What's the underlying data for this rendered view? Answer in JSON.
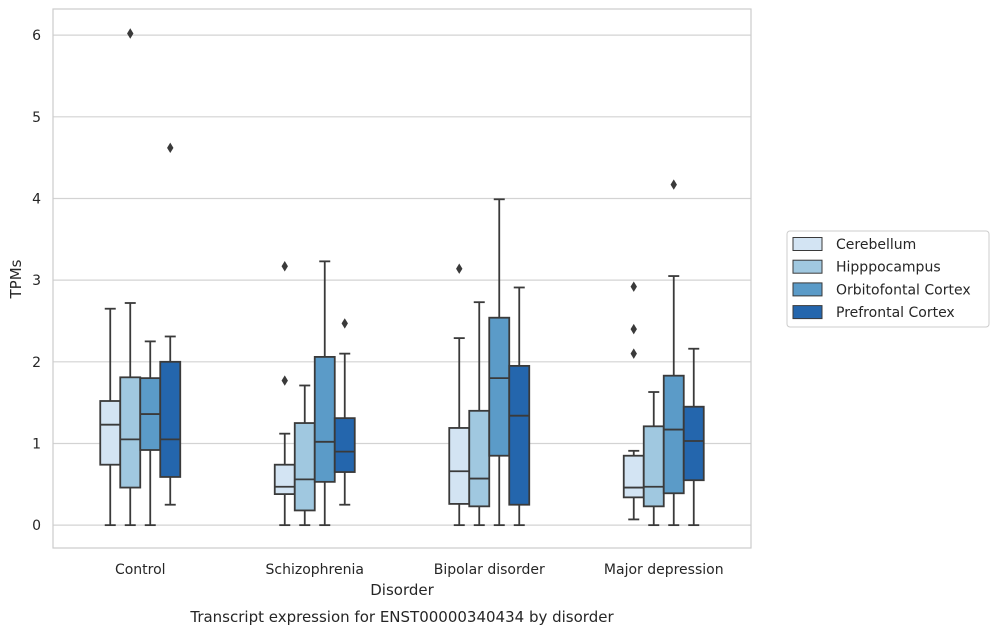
{
  "caption": "Transcript expression for ENST00000340434 by disorder",
  "chart_data": {
    "type": "box",
    "xlabel": "Disorder",
    "ylabel": "TPMs",
    "ylim": [
      -0.28,
      6.32
    ],
    "yticks": [
      0,
      1,
      2,
      3,
      4,
      5,
      6
    ],
    "grid": "horizontal",
    "legend_position": "right",
    "categories": [
      "Control",
      "Schizophrenia",
      "Bipolar disorder",
      "Major depression"
    ],
    "series": [
      {
        "name": "Cerebellum",
        "color": "#d3e4f3",
        "boxes": [
          {
            "whisker_low": 0,
            "q1": 0.74,
            "median": 1.23,
            "q3": 1.52,
            "whisker_high": 2.65,
            "outliers": []
          },
          {
            "whisker_low": 0,
            "q1": 0.38,
            "median": 0.47,
            "q3": 0.74,
            "whisker_high": 1.12,
            "outliers": [
              1.77,
              3.17
            ]
          },
          {
            "whisker_low": 0,
            "q1": 0.26,
            "median": 0.66,
            "q3": 1.19,
            "whisker_high": 2.29,
            "outliers": [
              3.14
            ]
          },
          {
            "whisker_low": 0.07,
            "q1": 0.34,
            "median": 0.46,
            "q3": 0.85,
            "whisker_high": 0.91,
            "outliers": [
              2.1,
              2.4,
              2.92
            ]
          }
        ]
      },
      {
        "name": "Hipppocampus",
        "color": "#a0c8e0",
        "boxes": [
          {
            "whisker_low": 0,
            "q1": 0.46,
            "median": 1.05,
            "q3": 1.81,
            "whisker_high": 2.72,
            "outliers": [
              6.02
            ]
          },
          {
            "whisker_low": 0,
            "q1": 0.18,
            "median": 0.56,
            "q3": 1.25,
            "whisker_high": 1.71,
            "outliers": []
          },
          {
            "whisker_low": 0,
            "q1": 0.23,
            "median": 0.57,
            "q3": 1.4,
            "whisker_high": 2.73,
            "outliers": []
          },
          {
            "whisker_low": 0,
            "q1": 0.23,
            "median": 0.47,
            "q3": 1.21,
            "whisker_high": 1.63,
            "outliers": []
          }
        ]
      },
      {
        "name": "Orbitofontal Cortex",
        "color": "#5b9bc8",
        "boxes": [
          {
            "whisker_low": 0,
            "q1": 0.92,
            "median": 1.36,
            "q3": 1.8,
            "whisker_high": 2.25,
            "outliers": []
          },
          {
            "whisker_low": 0,
            "q1": 0.53,
            "median": 1.02,
            "q3": 2.06,
            "whisker_high": 3.23,
            "outliers": []
          },
          {
            "whisker_low": 0,
            "q1": 0.85,
            "median": 1.8,
            "q3": 2.54,
            "whisker_high": 3.99,
            "outliers": []
          },
          {
            "whisker_low": 0,
            "q1": 0.39,
            "median": 1.17,
            "q3": 1.83,
            "whisker_high": 3.05,
            "outliers": [
              4.17
            ]
          }
        ]
      },
      {
        "name": "Prefrontal Cortex",
        "color": "#2466ad",
        "boxes": [
          {
            "whisker_low": 0.25,
            "q1": 0.59,
            "median": 1.05,
            "q3": 2.0,
            "whisker_high": 2.31,
            "outliers": [
              4.62
            ]
          },
          {
            "whisker_low": 0.25,
            "q1": 0.65,
            "median": 0.9,
            "q3": 1.31,
            "whisker_high": 2.1,
            "outliers": [
              2.47
            ]
          },
          {
            "whisker_low": 0,
            "q1": 0.25,
            "median": 1.34,
            "q3": 1.95,
            "whisker_high": 2.91,
            "outliers": []
          },
          {
            "whisker_low": 0,
            "q1": 0.55,
            "median": 1.03,
            "q3": 1.45,
            "whisker_high": 2.16,
            "outliers": []
          }
        ]
      }
    ]
  }
}
